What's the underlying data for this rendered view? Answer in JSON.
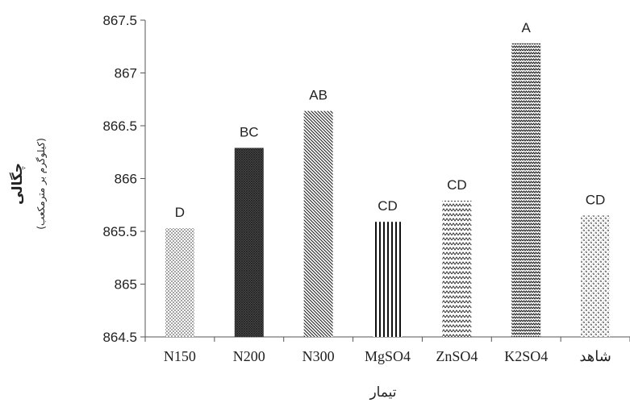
{
  "chart_data": {
    "type": "bar",
    "categories": [
      "N150",
      "N200",
      "N300",
      "MgSO4",
      "ZnSO4",
      "K2SO4",
      "شاهد"
    ],
    "values": [
      865.53,
      866.29,
      866.64,
      865.59,
      865.79,
      867.28,
      865.65
    ],
    "letters": [
      "D",
      "BC",
      "AB",
      "CD",
      "CD",
      "A",
      "CD"
    ],
    "patterns": [
      "dots",
      "dense-crosshatch",
      "diagonal",
      "vertical",
      "zigzag",
      "zigzag-dense",
      "dots-diagonal"
    ],
    "title": "",
    "xlabel": "تیمار",
    "ylabel": "چگالی",
    "ylabel_unit": "(کیلوگرم بر مترمکعب)",
    "ylim": [
      864.5,
      867.5
    ],
    "yticks": [
      "864.5",
      "865",
      "865.5",
      "866",
      "866.5",
      "867",
      "867.5"
    ],
    "grid": false,
    "legend": "none"
  }
}
